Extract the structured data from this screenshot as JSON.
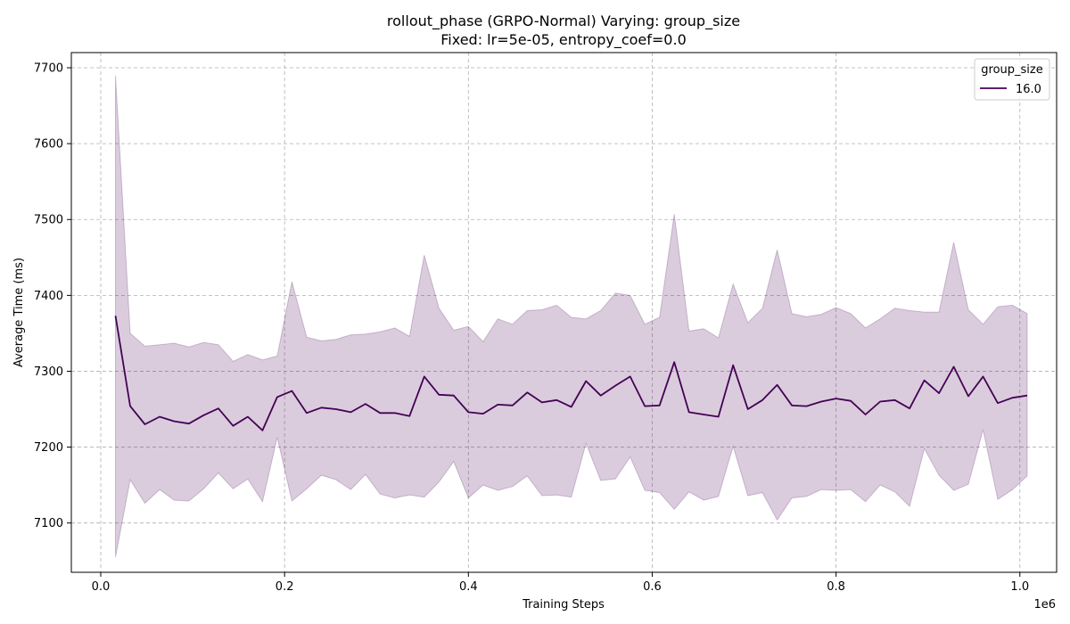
{
  "chart_data": {
    "type": "line",
    "title": "rollout_phase (GRPO-Normal) Varying: group_size",
    "subtitle": "Fixed: lr=5e-05, entropy_coef=0.0",
    "xlabel": "Training Steps",
    "ylabel": "Average Time (ms)",
    "x_scale_label": "1e6",
    "xlim": [
      -0.032,
      1.04
    ],
    "ylim": [
      7035,
      7720
    ],
    "x_ticks": [
      0.0,
      0.2,
      0.4,
      0.6,
      0.8,
      1.0
    ],
    "x_tick_labels": [
      "0.0",
      "0.2",
      "0.4",
      "0.6",
      "0.8",
      "1.0"
    ],
    "y_ticks": [
      7100,
      7200,
      7300,
      7400,
      7500,
      7600,
      7700
    ],
    "y_tick_labels": [
      "7100",
      "7200",
      "7300",
      "7400",
      "7500",
      "7600",
      "7700"
    ],
    "grid": true,
    "legend": {
      "title": "group_size",
      "placement": "top-right"
    },
    "color": "#440154",
    "band_color": "#440154",
    "series": [
      {
        "name": "16.0",
        "x": [
          0.016,
          0.032,
          0.048,
          0.064,
          0.08,
          0.096,
          0.112,
          0.128,
          0.144,
          0.16,
          0.176,
          0.192,
          0.208,
          0.224,
          0.24,
          0.256,
          0.272,
          0.288,
          0.304,
          0.32,
          0.336,
          0.352,
          0.368,
          0.384,
          0.4,
          0.416,
          0.432,
          0.448,
          0.464,
          0.48,
          0.496,
          0.512,
          0.528,
          0.544,
          0.56,
          0.576,
          0.592,
          0.608,
          0.624,
          0.64,
          0.656,
          0.672,
          0.688,
          0.704,
          0.72,
          0.736,
          0.752,
          0.768,
          0.784,
          0.8,
          0.816,
          0.832,
          0.848,
          0.864,
          0.88,
          0.896,
          0.912,
          0.928,
          0.944,
          0.96,
          0.976,
          0.992,
          1.008
        ],
        "y": [
          7373,
          7254,
          7230,
          7240,
          7234,
          7231,
          7242,
          7251,
          7228,
          7240,
          7222,
          7266,
          7274,
          7245,
          7252,
          7250,
          7246,
          7257,
          7245,
          7245,
          7241,
          7293,
          7269,
          7268,
          7246,
          7244,
          7256,
          7255,
          7272,
          7259,
          7262,
          7253,
          7287,
          7268,
          7281,
          7293,
          7254,
          7255,
          7312,
          7246,
          7243,
          7240,
          7308,
          7250,
          7262,
          7282,
          7255,
          7254,
          7260,
          7264,
          7261,
          7243,
          7260,
          7262,
          7251,
          7288,
          7271,
          7306,
          7267,
          7293,
          7258,
          7265,
          7268
        ],
        "upper": [
          7690,
          7350,
          7333,
          7335,
          7337,
          7332,
          7338,
          7335,
          7313,
          7322,
          7315,
          7320,
          7418,
          7345,
          7340,
          7342,
          7348,
          7349,
          7352,
          7357,
          7346,
          7453,
          7383,
          7354,
          7359,
          7339,
          7369,
          7362,
          7380,
          7381,
          7387,
          7371,
          7369,
          7380,
          7403,
          7400,
          7362,
          7371,
          7507,
          7353,
          7356,
          7344,
          7415,
          7364,
          7383,
          7460,
          7376,
          7372,
          7375,
          7384,
          7376,
          7357,
          7369,
          7383,
          7380,
          7378,
          7378,
          7470,
          7381,
          7362,
          7385,
          7387,
          7376
        ],
        "lower": [
          7055,
          7157,
          7126,
          7144,
          7130,
          7129,
          7145,
          7166,
          7145,
          7158,
          7128,
          7213,
          7129,
          7145,
          7163,
          7157,
          7144,
          7164,
          7138,
          7133,
          7137,
          7134,
          7154,
          7181,
          7133,
          7150,
          7143,
          7148,
          7162,
          7136,
          7137,
          7134,
          7205,
          7156,
          7158,
          7187,
          7143,
          7140,
          7118,
          7141,
          7130,
          7135,
          7201,
          7136,
          7140,
          7104,
          7133,
          7135,
          7144,
          7143,
          7144,
          7128,
          7150,
          7141,
          7122,
          7198,
          7163,
          7143,
          7151,
          7223,
          7131,
          7144,
          7162
        ]
      }
    ]
  }
}
